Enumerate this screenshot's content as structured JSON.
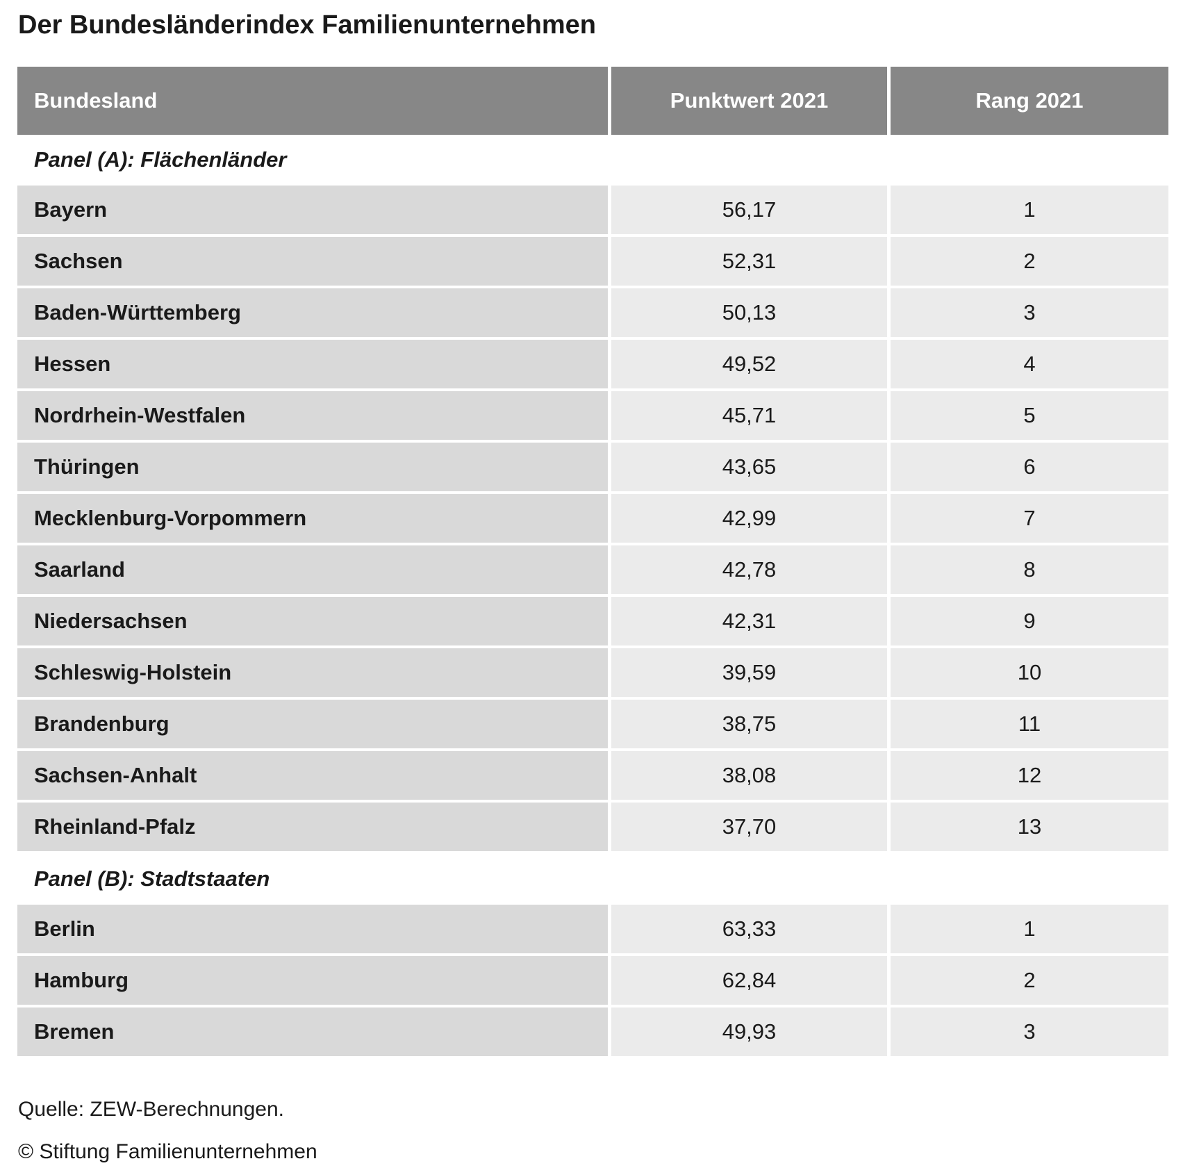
{
  "header": {
    "title": "Der Bundesländerindex Familienunternehmen"
  },
  "table": {
    "columns": [
      "Bundesland",
      "Punktwert 2021",
      "Rang 2021"
    ],
    "panels": [
      {
        "label": "Panel (A): Flächenländer",
        "rows": [
          [
            "Bayern",
            "56,17",
            1
          ],
          [
            "Sachsen",
            "52,31",
            2
          ],
          [
            "Baden-Württemberg",
            "50,13",
            3
          ],
          [
            "Hessen",
            "49,52",
            4
          ],
          [
            "Nordrhein-Westfalen",
            "45,71",
            5
          ],
          [
            "Thüringen",
            "43,65",
            6
          ],
          [
            "Mecklenburg-Vorpommern",
            "42,99",
            7
          ],
          [
            "Saarland",
            "42,78",
            8
          ],
          [
            "Niedersachsen",
            "42,31",
            9
          ],
          [
            "Schleswig-Holstein",
            "39,59",
            10
          ],
          [
            "Brandenburg",
            "38,75",
            11
          ],
          [
            "Sachsen-Anhalt",
            "38,08",
            12
          ],
          [
            "Rheinland-Pfalz",
            "37,70",
            13
          ]
        ]
      },
      {
        "label": "Panel (B): Stadtstaaten",
        "rows": [
          [
            "Berlin",
            "63,33",
            1
          ],
          [
            "Hamburg",
            "62,84",
            2
          ],
          [
            "Bremen",
            "49,93",
            3
          ]
        ]
      }
    ]
  },
  "footer": {
    "source": "Quelle: ZEW-Berechnungen.",
    "copyright": "© Stiftung Familienunternehmen"
  }
}
